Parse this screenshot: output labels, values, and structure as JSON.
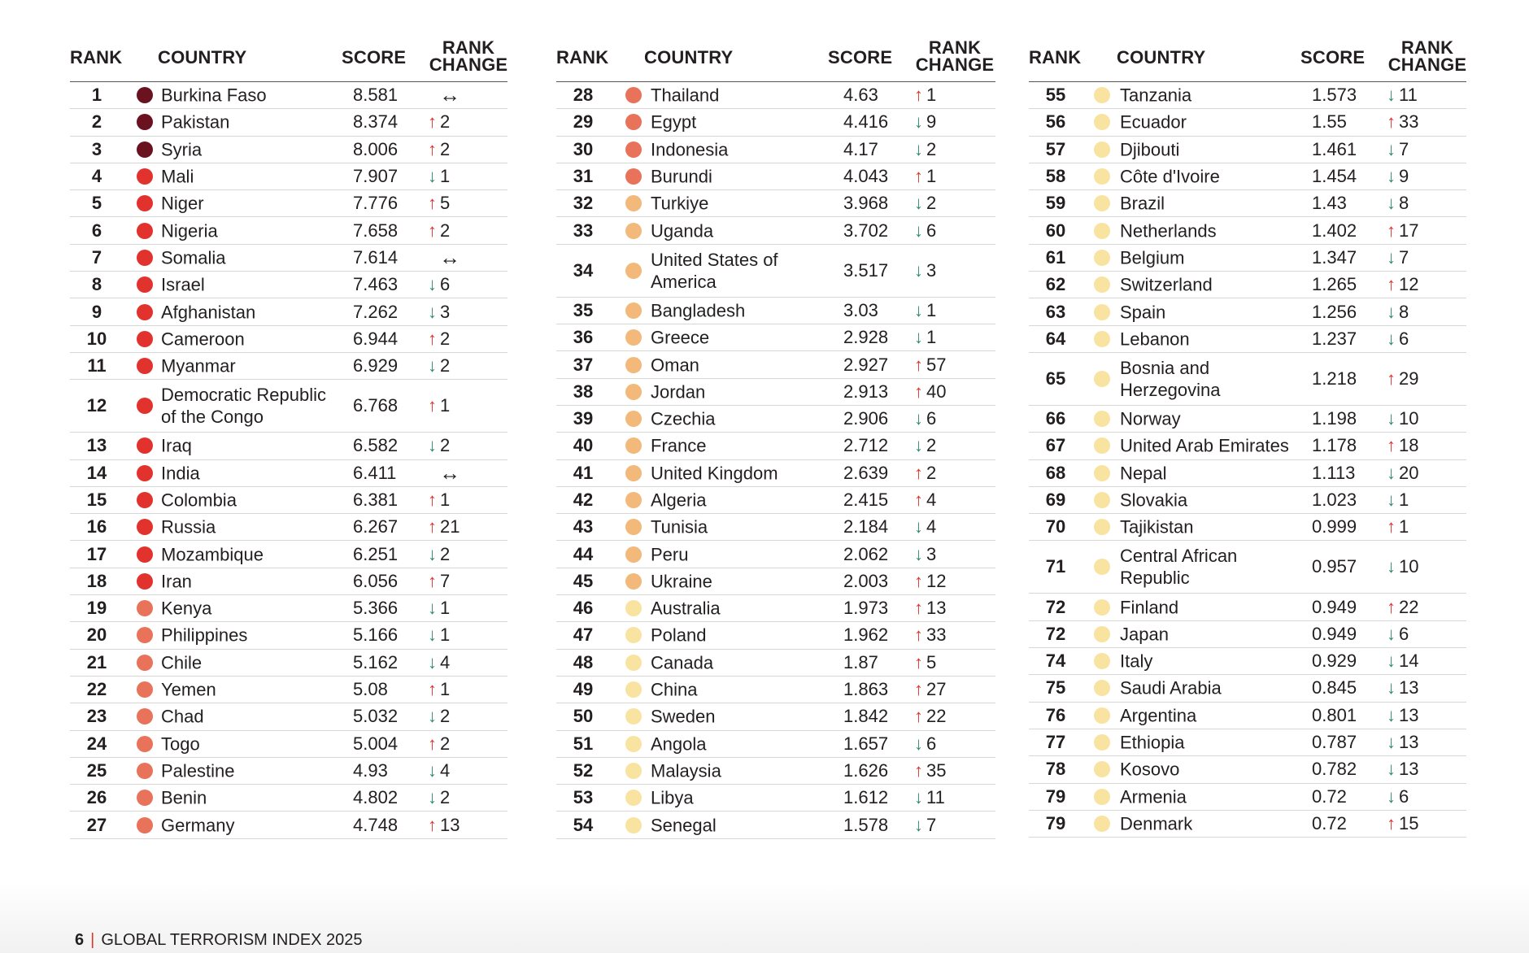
{
  "headers": {
    "rank": "RANK",
    "country": "COUNTRY",
    "score": "SCORE",
    "change_line1": "RANK",
    "change_line2": "CHANGE"
  },
  "colors": {
    "c1": "#6b1220",
    "c2": "#e2322d",
    "c3": "#e8735a",
    "c4": "#f2b97a",
    "c5": "#f8e3a0",
    "up": "#e0332c",
    "down": "#2f8a73"
  },
  "columns": [
    [
      {
        "rank": "1",
        "country": "Burkina Faso",
        "score": "8.581",
        "dir": "same",
        "change": "",
        "color": "c1"
      },
      {
        "rank": "2",
        "country": "Pakistan",
        "score": "8.374",
        "dir": "up",
        "change": "2",
        "color": "c1"
      },
      {
        "rank": "3",
        "country": "Syria",
        "score": "8.006",
        "dir": "up",
        "change": "2",
        "color": "c1"
      },
      {
        "rank": "4",
        "country": "Mali",
        "score": "7.907",
        "dir": "down",
        "change": "1",
        "color": "c2"
      },
      {
        "rank": "5",
        "country": "Niger",
        "score": "7.776",
        "dir": "up",
        "change": "5",
        "color": "c2"
      },
      {
        "rank": "6",
        "country": "Nigeria",
        "score": "7.658",
        "dir": "up",
        "change": "2",
        "color": "c2"
      },
      {
        "rank": "7",
        "country": "Somalia",
        "score": "7.614",
        "dir": "same",
        "change": "",
        "color": "c2"
      },
      {
        "rank": "8",
        "country": "Israel",
        "score": "7.463",
        "dir": "down",
        "change": "6",
        "color": "c2"
      },
      {
        "rank": "9",
        "country": "Afghanistan",
        "score": "7.262",
        "dir": "down",
        "change": "3",
        "color": "c2"
      },
      {
        "rank": "10",
        "country": "Cameroon",
        "score": "6.944",
        "dir": "up",
        "change": "2",
        "color": "c2"
      },
      {
        "rank": "11",
        "country": "Myanmar",
        "score": "6.929",
        "dir": "down",
        "change": "2",
        "color": "c2"
      },
      {
        "rank": "12",
        "country": "Democratic Republic",
        "country2": "of the Congo",
        "score": "6.768",
        "dir": "up",
        "change": "1",
        "color": "c2"
      },
      {
        "rank": "13",
        "country": "Iraq",
        "score": "6.582",
        "dir": "down",
        "change": "2",
        "color": "c2"
      },
      {
        "rank": "14",
        "country": "India",
        "score": "6.411",
        "dir": "same",
        "change": "",
        "color": "c2"
      },
      {
        "rank": "15",
        "country": "Colombia",
        "score": "6.381",
        "dir": "up",
        "change": "1",
        "color": "c2"
      },
      {
        "rank": "16",
        "country": "Russia",
        "score": "6.267",
        "dir": "up",
        "change": "21",
        "color": "c2"
      },
      {
        "rank": "17",
        "country": "Mozambique",
        "score": "6.251",
        "dir": "down",
        "change": "2",
        "color": "c2"
      },
      {
        "rank": "18",
        "country": "Iran",
        "score": "6.056",
        "dir": "up",
        "change": "7",
        "color": "c2"
      },
      {
        "rank": "19",
        "country": "Kenya",
        "score": "5.366",
        "dir": "down",
        "change": "1",
        "color": "c3"
      },
      {
        "rank": "20",
        "country": "Philippines",
        "score": "5.166",
        "dir": "down",
        "change": "1",
        "color": "c3"
      },
      {
        "rank": "21",
        "country": "Chile",
        "score": "5.162",
        "dir": "down",
        "change": "4",
        "color": "c3"
      },
      {
        "rank": "22",
        "country": "Yemen",
        "score": "5.08",
        "dir": "up",
        "change": "1",
        "color": "c3"
      },
      {
        "rank": "23",
        "country": "Chad",
        "score": "5.032",
        "dir": "down",
        "change": "2",
        "color": "c3"
      },
      {
        "rank": "24",
        "country": "Togo",
        "score": "5.004",
        "dir": "up",
        "change": "2",
        "color": "c3"
      },
      {
        "rank": "25",
        "country": "Palestine",
        "score": "4.93",
        "dir": "down",
        "change": "4",
        "color": "c3"
      },
      {
        "rank": "26",
        "country": "Benin",
        "score": "4.802",
        "dir": "down",
        "change": "2",
        "color": "c3"
      },
      {
        "rank": "27",
        "country": "Germany",
        "score": "4.748",
        "dir": "up",
        "change": "13",
        "color": "c3"
      }
    ],
    [
      {
        "rank": "28",
        "country": "Thailand",
        "score": "4.63",
        "dir": "up",
        "change": "1",
        "color": "c3"
      },
      {
        "rank": "29",
        "country": "Egypt",
        "score": "4.416",
        "dir": "down",
        "change": "9",
        "color": "c3"
      },
      {
        "rank": "30",
        "country": "Indonesia",
        "score": "4.17",
        "dir": "down",
        "change": "2",
        "color": "c3"
      },
      {
        "rank": "31",
        "country": "Burundi",
        "score": "4.043",
        "dir": "up",
        "change": "1",
        "color": "c3"
      },
      {
        "rank": "32",
        "country": "Turkiye",
        "score": "3.968",
        "dir": "down",
        "change": "2",
        "color": "c4"
      },
      {
        "rank": "33",
        "country": "Uganda",
        "score": "3.702",
        "dir": "down",
        "change": "6",
        "color": "c4"
      },
      {
        "rank": "34",
        "country": "United States of",
        "country2": "America",
        "score": "3.517",
        "dir": "down",
        "change": "3",
        "color": "c4"
      },
      {
        "rank": "35",
        "country": "Bangladesh",
        "score": "3.03",
        "dir": "down",
        "change": "1",
        "color": "c4"
      },
      {
        "rank": "36",
        "country": "Greece",
        "score": "2.928",
        "dir": "down",
        "change": "1",
        "color": "c4"
      },
      {
        "rank": "37",
        "country": "Oman",
        "score": "2.927",
        "dir": "up",
        "change": "57",
        "color": "c4"
      },
      {
        "rank": "38",
        "country": "Jordan",
        "score": "2.913",
        "dir": "up",
        "change": "40",
        "color": "c4"
      },
      {
        "rank": "39",
        "country": "Czechia",
        "score": "2.906",
        "dir": "down",
        "change": "6",
        "color": "c4"
      },
      {
        "rank": "40",
        "country": "France",
        "score": "2.712",
        "dir": "down",
        "change": "2",
        "color": "c4"
      },
      {
        "rank": "41",
        "country": "United Kingdom",
        "score": "2.639",
        "dir": "up",
        "change": "2",
        "color": "c4"
      },
      {
        "rank": "42",
        "country": "Algeria",
        "score": "2.415",
        "dir": "up",
        "change": "4",
        "color": "c4"
      },
      {
        "rank": "43",
        "country": "Tunisia",
        "score": "2.184",
        "dir": "down",
        "change": "4",
        "color": "c4"
      },
      {
        "rank": "44",
        "country": "Peru",
        "score": "2.062",
        "dir": "down",
        "change": "3",
        "color": "c4"
      },
      {
        "rank": "45",
        "country": "Ukraine",
        "score": "2.003",
        "dir": "up",
        "change": "12",
        "color": "c4"
      },
      {
        "rank": "46",
        "country": "Australia",
        "score": "1.973",
        "dir": "up",
        "change": "13",
        "color": "c5"
      },
      {
        "rank": "47",
        "country": "Poland",
        "score": "1.962",
        "dir": "up",
        "change": "33",
        "color": "c5"
      },
      {
        "rank": "48",
        "country": "Canada",
        "score": "1.87",
        "dir": "up",
        "change": "5",
        "color": "c5"
      },
      {
        "rank": "49",
        "country": "China",
        "score": "1.863",
        "dir": "up",
        "change": "27",
        "color": "c5"
      },
      {
        "rank": "50",
        "country": "Sweden",
        "score": "1.842",
        "dir": "up",
        "change": "22",
        "color": "c5"
      },
      {
        "rank": "51",
        "country": "Angola",
        "score": "1.657",
        "dir": "down",
        "change": "6",
        "color": "c5"
      },
      {
        "rank": "52",
        "country": "Malaysia",
        "score": "1.626",
        "dir": "up",
        "change": "35",
        "color": "c5"
      },
      {
        "rank": "53",
        "country": "Libya",
        "score": "1.612",
        "dir": "down",
        "change": "11",
        "color": "c5"
      },
      {
        "rank": "54",
        "country": "Senegal",
        "score": "1.578",
        "dir": "down",
        "change": "7",
        "color": "c5"
      }
    ],
    [
      {
        "rank": "55",
        "country": "Tanzania",
        "score": "1.573",
        "dir": "down",
        "change": "11",
        "color": "c5"
      },
      {
        "rank": "56",
        "country": "Ecuador",
        "score": "1.55",
        "dir": "up",
        "change": "33",
        "color": "c5"
      },
      {
        "rank": "57",
        "country": "Djibouti",
        "score": "1.461",
        "dir": "down",
        "change": "7",
        "color": "c5"
      },
      {
        "rank": "58",
        "country": "Côte d'Ivoire",
        "score": "1.454",
        "dir": "down",
        "change": "9",
        "color": "c5"
      },
      {
        "rank": "59",
        "country": "Brazil",
        "score": "1.43",
        "dir": "down",
        "change": "8",
        "color": "c5"
      },
      {
        "rank": "60",
        "country": "Netherlands",
        "score": "1.402",
        "dir": "up",
        "change": "17",
        "color": "c5"
      },
      {
        "rank": "61",
        "country": "Belgium",
        "score": "1.347",
        "dir": "down",
        "change": "7",
        "color": "c5"
      },
      {
        "rank": "62",
        "country": "Switzerland",
        "score": "1.265",
        "dir": "up",
        "change": "12",
        "color": "c5"
      },
      {
        "rank": "63",
        "country": "Spain",
        "score": "1.256",
        "dir": "down",
        "change": "8",
        "color": "c5"
      },
      {
        "rank": "64",
        "country": "Lebanon",
        "score": "1.237",
        "dir": "down",
        "change": "6",
        "color": "c5"
      },
      {
        "rank": "65",
        "country": "Bosnia and",
        "country2": "Herzegovina",
        "score": "1.218",
        "dir": "up",
        "change": "29",
        "color": "c5"
      },
      {
        "rank": "66",
        "country": "Norway",
        "score": "1.198",
        "dir": "down",
        "change": "10",
        "color": "c5"
      },
      {
        "rank": "67",
        "country": "United Arab Emirates",
        "score": "1.178",
        "dir": "up",
        "change": "18",
        "color": "c5"
      },
      {
        "rank": "68",
        "country": "Nepal",
        "score": "1.113",
        "dir": "down",
        "change": "20",
        "color": "c5"
      },
      {
        "rank": "69",
        "country": "Slovakia",
        "score": "1.023",
        "dir": "down",
        "change": "1",
        "color": "c5"
      },
      {
        "rank": "70",
        "country": "Tajikistan",
        "score": "0.999",
        "dir": "up",
        "change": "1",
        "color": "c5"
      },
      {
        "rank": "71",
        "country": "Central African",
        "country2": "Republic",
        "score": "0.957",
        "dir": "down",
        "change": "10",
        "color": "c5"
      },
      {
        "rank": "72",
        "country": "Finland",
        "score": "0.949",
        "dir": "up",
        "change": "22",
        "color": "c5"
      },
      {
        "rank": "72",
        "country": "Japan",
        "score": "0.949",
        "dir": "down",
        "change": "6",
        "color": "c5"
      },
      {
        "rank": "74",
        "country": "Italy",
        "score": "0.929",
        "dir": "down",
        "change": "14",
        "color": "c5"
      },
      {
        "rank": "75",
        "country": "Saudi Arabia",
        "score": "0.845",
        "dir": "down",
        "change": "13",
        "color": "c5"
      },
      {
        "rank": "76",
        "country": "Argentina",
        "score": "0.801",
        "dir": "down",
        "change": "13",
        "color": "c5"
      },
      {
        "rank": "77",
        "country": "Ethiopia",
        "score": "0.787",
        "dir": "down",
        "change": "13",
        "color": "c5"
      },
      {
        "rank": "78",
        "country": "Kosovo",
        "score": "0.782",
        "dir": "down",
        "change": "13",
        "color": "c5"
      },
      {
        "rank": "79",
        "country": "Armenia",
        "score": "0.72",
        "dir": "down",
        "change": "6",
        "color": "c5"
      },
      {
        "rank": "79",
        "country": "Denmark",
        "score": "0.72",
        "dir": "up",
        "change": "15",
        "color": "c5"
      }
    ]
  ],
  "footer": {
    "page": "6",
    "separator": "|",
    "title": "GLOBAL TERRORISM INDEX 2025"
  }
}
